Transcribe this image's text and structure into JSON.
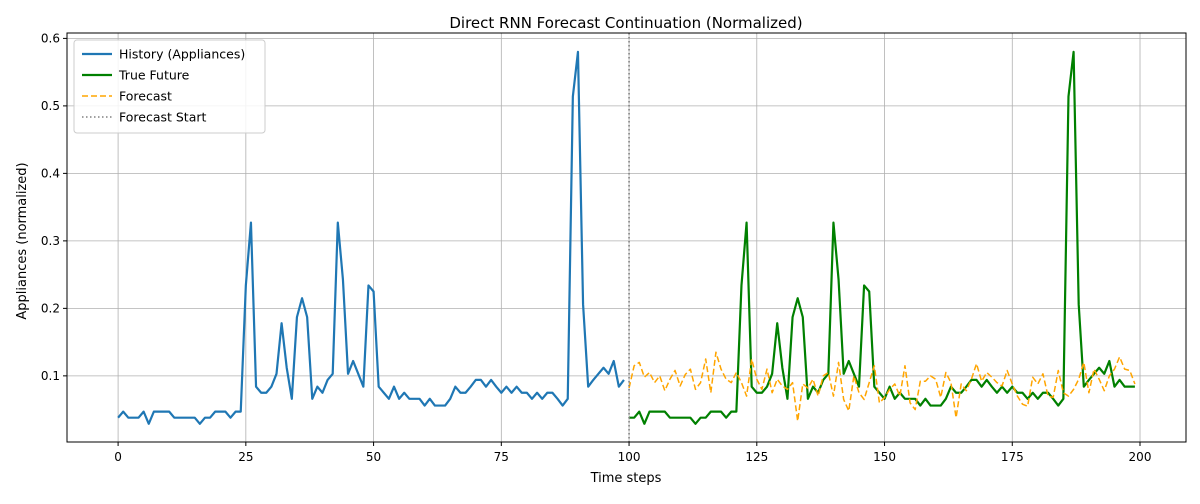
{
  "chart_data": {
    "type": "line",
    "title": "Direct RNN Forecast Continuation (Normalized)",
    "xlabel": "Time steps",
    "ylabel": "Appliances (normalized)",
    "xlim": [
      -10,
      209
    ],
    "ylim": [
      0.002,
      0.608
    ],
    "xticks": [
      0,
      25,
      50,
      75,
      100,
      125,
      150,
      175,
      200
    ],
    "yticks": [
      0.1,
      0.2,
      0.3,
      0.4,
      0.5,
      0.6
    ],
    "ytick_labels": [
      "0.1",
      "0.2",
      "0.3",
      "0.4",
      "0.5",
      "0.6"
    ],
    "grid": true,
    "legend_position": "top-left",
    "forecast_start": 100,
    "series": [
      {
        "name": "History (Appliances)",
        "color": "#1f77b4",
        "style": "solid",
        "x_start": 0,
        "values": [
          0.038,
          0.047,
          0.038,
          0.038,
          0.038,
          0.047,
          0.029,
          0.047,
          0.047,
          0.047,
          0.047,
          0.038,
          0.038,
          0.038,
          0.038,
          0.038,
          0.029,
          0.038,
          0.038,
          0.047,
          0.047,
          0.047,
          0.038,
          0.047,
          0.047,
          0.234,
          0.327,
          0.084,
          0.075,
          0.075,
          0.084,
          0.103,
          0.178,
          0.112,
          0.066,
          0.187,
          0.215,
          0.187,
          0.066,
          0.084,
          0.075,
          0.094,
          0.103,
          0.327,
          0.243,
          0.103,
          0.122,
          0.103,
          0.084,
          0.234,
          0.225,
          0.084,
          0.075,
          0.066,
          0.084,
          0.066,
          0.075,
          0.066,
          0.066,
          0.066,
          0.056,
          0.066,
          0.056,
          0.056,
          0.056,
          0.066,
          0.084,
          0.075,
          0.075,
          0.084,
          0.094,
          0.094,
          0.084,
          0.094,
          0.084,
          0.075,
          0.084,
          0.075,
          0.084,
          0.075,
          0.075,
          0.066,
          0.075,
          0.066,
          0.075,
          0.075,
          0.066,
          0.056,
          0.066,
          0.514,
          0.58,
          0.206,
          0.084,
          0.094,
          0.103,
          0.112,
          0.103,
          0.122,
          0.084,
          0.094
        ]
      },
      {
        "name": "True Future",
        "color": "#008000",
        "style": "solid",
        "x_start": 100,
        "values": [
          0.038,
          0.038,
          0.047,
          0.029,
          0.047,
          0.047,
          0.047,
          0.047,
          0.038,
          0.038,
          0.038,
          0.038,
          0.038,
          0.029,
          0.038,
          0.038,
          0.047,
          0.047,
          0.047,
          0.038,
          0.047,
          0.047,
          0.234,
          0.327,
          0.084,
          0.075,
          0.075,
          0.084,
          0.103,
          0.178,
          0.112,
          0.066,
          0.187,
          0.215,
          0.187,
          0.066,
          0.084,
          0.075,
          0.094,
          0.103,
          0.327,
          0.243,
          0.103,
          0.122,
          0.103,
          0.084,
          0.234,
          0.225,
          0.084,
          0.075,
          0.066,
          0.084,
          0.066,
          0.075,
          0.066,
          0.066,
          0.066,
          0.056,
          0.066,
          0.056,
          0.056,
          0.056,
          0.066,
          0.084,
          0.075,
          0.075,
          0.084,
          0.094,
          0.094,
          0.084,
          0.094,
          0.084,
          0.075,
          0.084,
          0.075,
          0.084,
          0.075,
          0.075,
          0.066,
          0.075,
          0.066,
          0.075,
          0.075,
          0.066,
          0.056,
          0.066,
          0.514,
          0.58,
          0.206,
          0.084,
          0.094,
          0.103,
          0.112,
          0.103,
          0.122,
          0.084,
          0.094,
          0.084,
          0.084,
          0.084
        ]
      },
      {
        "name": "Forecast",
        "color": "#ffa500",
        "style": "dashed",
        "x_start": 100,
        "values": [
          0.082,
          0.115,
          0.12,
          0.098,
          0.105,
          0.09,
          0.1,
          0.078,
          0.095,
          0.108,
          0.085,
          0.102,
          0.11,
          0.08,
          0.09,
          0.125,
          0.075,
          0.135,
          0.11,
          0.095,
          0.09,
          0.105,
          0.09,
          0.07,
          0.125,
          0.095,
          0.08,
          0.11,
          0.075,
          0.095,
          0.085,
          0.08,
          0.09,
          0.033,
          0.088,
          0.082,
          0.095,
          0.07,
          0.1,
          0.105,
          0.07,
          0.12,
          0.065,
          0.048,
          0.1,
          0.075,
          0.065,
          0.09,
          0.115,
          0.06,
          0.068,
          0.08,
          0.088,
          0.07,
          0.115,
          0.06,
          0.05,
          0.092,
          0.092,
          0.1,
          0.095,
          0.068,
          0.105,
          0.09,
          0.038,
          0.088,
          0.078,
          0.095,
          0.118,
          0.092,
          0.105,
          0.098,
          0.09,
          0.085,
          0.108,
          0.088,
          0.07,
          0.058,
          0.055,
          0.098,
          0.088,
          0.103,
          0.07,
          0.068,
          0.108,
          0.075,
          0.07,
          0.08,
          0.095,
          0.12,
          0.075,
          0.11,
          0.095,
          0.078,
          0.1,
          0.11,
          0.128,
          0.11,
          0.108,
          0.088
        ]
      },
      {
        "name": "Forecast Start",
        "color": "#808080",
        "style": "dotted",
        "vertical_line_x": 100
      }
    ]
  }
}
